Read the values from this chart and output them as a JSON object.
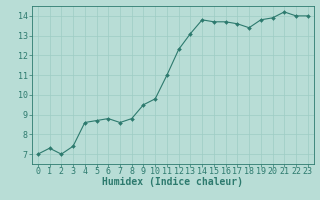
{
  "x": [
    0,
    1,
    2,
    3,
    4,
    5,
    6,
    7,
    8,
    9,
    10,
    11,
    12,
    13,
    14,
    15,
    16,
    17,
    18,
    19,
    20,
    21,
    22,
    23
  ],
  "y": [
    7.0,
    7.3,
    7.0,
    7.4,
    8.6,
    8.7,
    8.8,
    8.6,
    8.8,
    9.5,
    9.8,
    11.0,
    12.3,
    13.1,
    13.8,
    13.7,
    13.7,
    13.6,
    13.4,
    13.8,
    13.9,
    14.2,
    14.0,
    14.0
  ],
  "line_color": "#2d7a6e",
  "marker_color": "#2d7a6e",
  "bg_color": "#b8ddd6",
  "grid_color": "#9eccc4",
  "xlabel": "Humidex (Indice chaleur)",
  "ylim": [
    6.5,
    14.5
  ],
  "xlim": [
    -0.5,
    23.5
  ],
  "yticks": [
    7,
    8,
    9,
    10,
    11,
    12,
    13,
    14
  ],
  "xticks": [
    0,
    1,
    2,
    3,
    4,
    5,
    6,
    7,
    8,
    9,
    10,
    11,
    12,
    13,
    14,
    15,
    16,
    17,
    18,
    19,
    20,
    21,
    22,
    23
  ],
  "font_color": "#2d7a6e",
  "label_fontsize": 7,
  "tick_fontsize": 6
}
